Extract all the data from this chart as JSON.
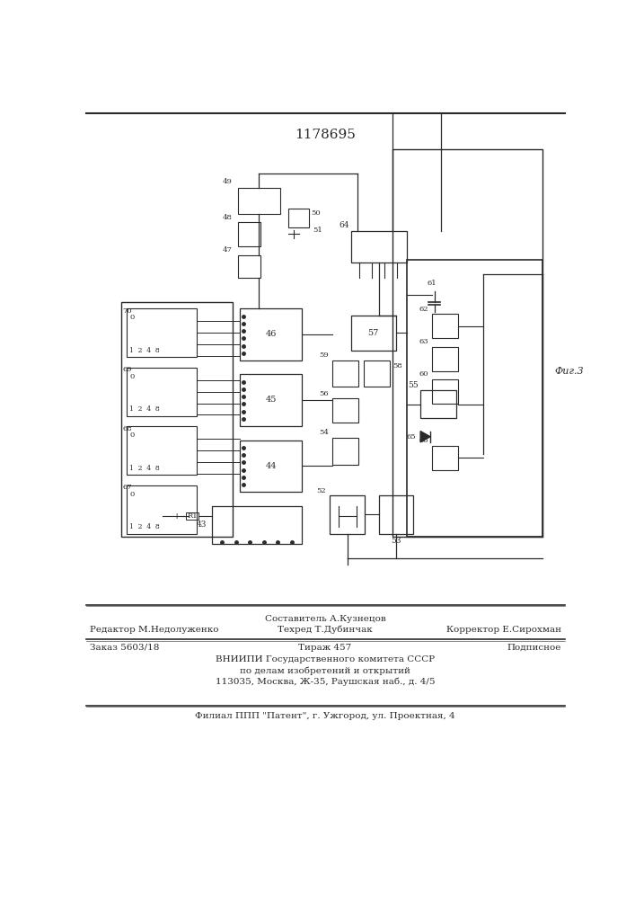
{
  "patent_number": "1178695",
  "fig_label": "Фиг.3",
  "bg": "#ffffff",
  "lc": "#2a2a2a",
  "footer": {
    "row1_left": "",
    "row1_center": "Составитель А.Кузнецов",
    "row2_left": "Редактор М.Недолуженко",
    "row2_center": "Техред Т.Дубинчак",
    "row2_right": "Корректор Е.Сирохман",
    "row3_left": "Заказ 5603/18",
    "row3_center": "Тираж 457",
    "row3_right": "Подписное",
    "row4": "ВНИИПИ Государственного комитета СССР",
    "row5": "по делам изобретений и открытий",
    "row6": "113035, Москва, Ж-35, Раушская наб., д. 4/5",
    "row7": "Филиал ППП \"Патент\", г. Ужгород, ул. Проектная, 4"
  }
}
